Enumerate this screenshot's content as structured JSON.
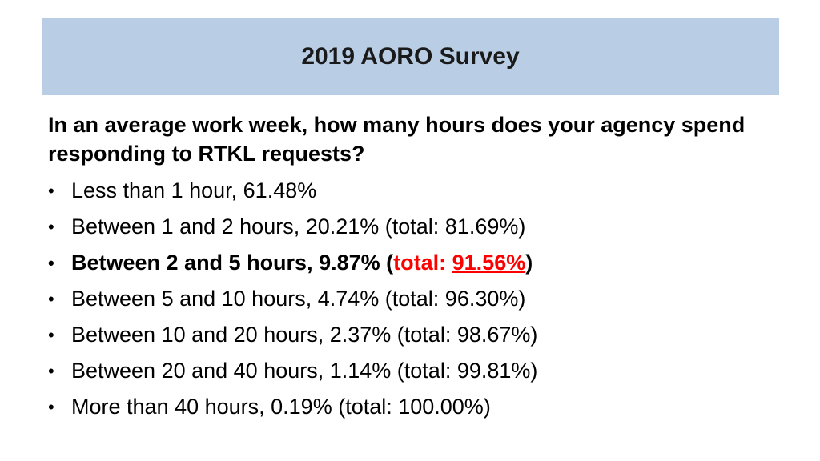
{
  "slide": {
    "title": "2019 AORO Survey",
    "title_bg_color": "#b9cde4",
    "question": "In an average work week, how many hours does your agency spend responding to RTKL requests?",
    "bullet": "•",
    "answers": [
      {
        "text": "Less than 1 hour, 61.48%"
      },
      {
        "text": "Between 1 and 2 hours, 20.21% (total: 81.69%)"
      },
      {
        "text_prefix": "Between 2 and 5 hours, 9.87% (",
        "total_label": "total: ",
        "total_value": "91.56%",
        "text_suffix": ")",
        "emphasis_color": "#ff0000"
      },
      {
        "text": "Between 5 and 10 hours, 4.74% (total: 96.30%)"
      },
      {
        "text": "Between 10 and 20 hours, 2.37% (total: 98.67%)"
      },
      {
        "text": "Between 20 and 40 hours, 1.14% (total: 99.81%)"
      },
      {
        "text": "More than 40 hours, 0.19% (total: 100.00%)"
      }
    ]
  }
}
